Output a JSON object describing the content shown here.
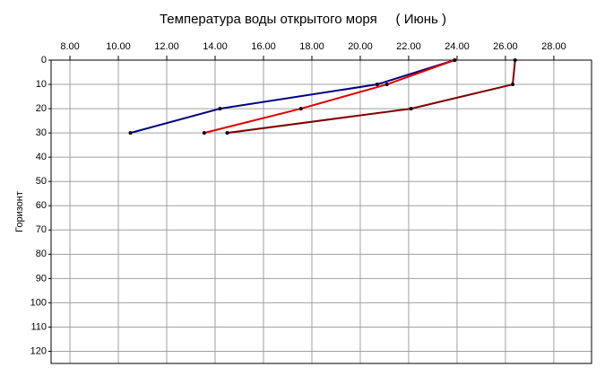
{
  "chart_data": {
    "type": "line",
    "title": "Температура воды открытого моря     ( Июнь )",
    "y_label": "Горизонт",
    "series": [
      {
        "color": "#000080",
        "x": [
          23.9,
          20.7,
          14.2,
          10.5
        ],
        "values": [
          0,
          10,
          20,
          30
        ]
      },
      {
        "color": "#e00000",
        "x": [
          23.9,
          21.1,
          17.55,
          13.55
        ],
        "values": [
          0,
          10,
          20,
          30
        ]
      },
      {
        "color": "#800000",
        "x": [
          26.4,
          26.3,
          22.1,
          14.5
        ],
        "values": [
          0,
          10,
          20,
          30
        ]
      }
    ],
    "xlim": [
      7.22,
      29.56
    ],
    "xticks": [
      {
        "value": 8,
        "label": "8.00"
      },
      {
        "value": 10,
        "label": "10.00"
      },
      {
        "value": 12,
        "label": "12.00"
      },
      {
        "value": 14,
        "label": "14.00"
      },
      {
        "value": 16,
        "label": "16.00"
      },
      {
        "value": 18,
        "label": "18.00"
      },
      {
        "value": 20,
        "label": "20.00"
      },
      {
        "value": 22,
        "label": "22.00"
      },
      {
        "value": 24,
        "label": "24.00"
      },
      {
        "value": 26,
        "label": "26.00"
      },
      {
        "value": 28,
        "label": "28.00"
      }
    ],
    "ylim": [
      0,
      125
    ],
    "yticks": [
      0,
      10,
      20,
      30,
      40,
      50,
      60,
      70,
      80,
      90,
      100,
      110,
      120
    ],
    "y_inverted": true,
    "grid": true
  }
}
